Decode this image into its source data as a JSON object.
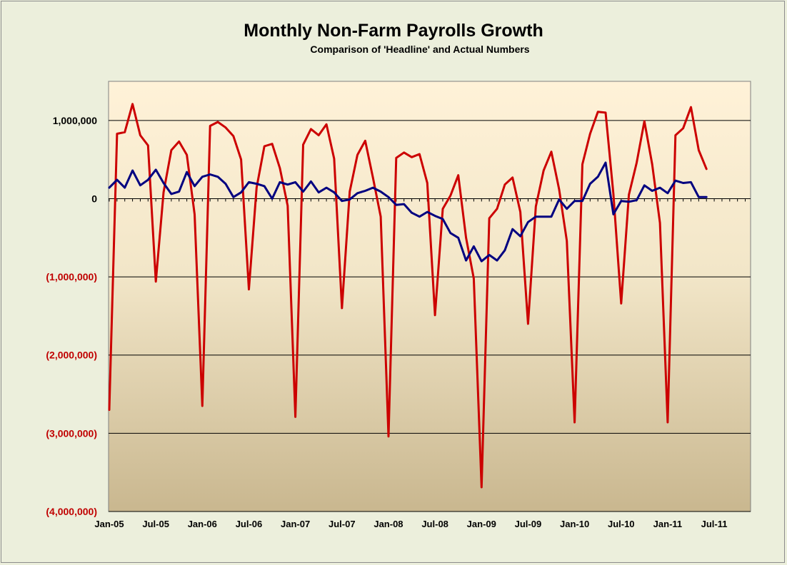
{
  "chart_data": {
    "type": "line",
    "title": "Monthly Non-Farm Payrolls Growth",
    "subtitle": "Comparison of 'Headline' and Actual Numbers",
    "xlabel": "",
    "ylabel": "",
    "x_start": "Jan-05",
    "x_labels": [
      "Jan-05",
      "Jul-05",
      "Jan-06",
      "Jul-06",
      "Jan-07",
      "Jul-07",
      "Jan-08",
      "Jul-08",
      "Jan-09",
      "Jul-09",
      "Jan-10",
      "Jul-10",
      "Jan-11",
      "Jul-11"
    ],
    "y_ticks": [
      1000000,
      0,
      -1000000,
      -2000000,
      -3000000,
      -4000000
    ],
    "y_tick_labels": [
      "1,000,000",
      "0",
      "(1,000,000)",
      "(2,000,000)",
      "(3,000,000)",
      "(4,000,000)"
    ],
    "negative_tick_color": "#c00000",
    "positive_tick_color": "#000000",
    "ylim": [
      -4000000,
      1500000
    ],
    "grid": true,
    "legend": "none",
    "series": [
      {
        "color": "#cc0000",
        "values": [
          -2700000,
          830000,
          850000,
          1210000,
          810000,
          680000,
          -1060000,
          80000,
          620000,
          730000,
          560000,
          -200000,
          -2650000,
          930000,
          980000,
          910000,
          800000,
          500000,
          -1160000,
          140000,
          670000,
          700000,
          390000,
          -90000,
          -2790000,
          690000,
          890000,
          810000,
          950000,
          510000,
          -1400000,
          90000,
          560000,
          740000,
          270000,
          -230000,
          -3040000,
          520000,
          590000,
          530000,
          570000,
          200000,
          -1490000,
          -130000,
          40000,
          300000,
          -500000,
          -1020000,
          -3690000,
          -250000,
          -130000,
          180000,
          270000,
          -170000,
          -1600000,
          -100000,
          360000,
          600000,
          120000,
          -540000,
          -2860000,
          440000,
          830000,
          1110000,
          1100000,
          60000,
          -1340000,
          50000,
          460000,
          990000,
          440000,
          -310000,
          -2860000,
          810000,
          900000,
          1170000,
          620000,
          380000
        ]
      },
      {
        "color": "#000080",
        "values": [
          140000,
          240000,
          140000,
          360000,
          170000,
          240000,
          370000,
          200000,
          60000,
          90000,
          340000,
          160000,
          280000,
          310000,
          280000,
          190000,
          20000,
          80000,
          210000,
          190000,
          160000,
          0,
          210000,
          180000,
          210000,
          90000,
          220000,
          80000,
          140000,
          80000,
          -30000,
          -10000,
          70000,
          100000,
          140000,
          90000,
          20000,
          -80000,
          -70000,
          -180000,
          -230000,
          -170000,
          -220000,
          -260000,
          -440000,
          -500000,
          -790000,
          -610000,
          -800000,
          -720000,
          -790000,
          -660000,
          -390000,
          -480000,
          -300000,
          -230000,
          -230000,
          -230000,
          -10000,
          -130000,
          -30000,
          -30000,
          190000,
          280000,
          460000,
          -200000,
          -30000,
          -40000,
          -20000,
          170000,
          100000,
          140000,
          70000,
          230000,
          200000,
          210000,
          20000,
          20000
        ]
      }
    ]
  }
}
